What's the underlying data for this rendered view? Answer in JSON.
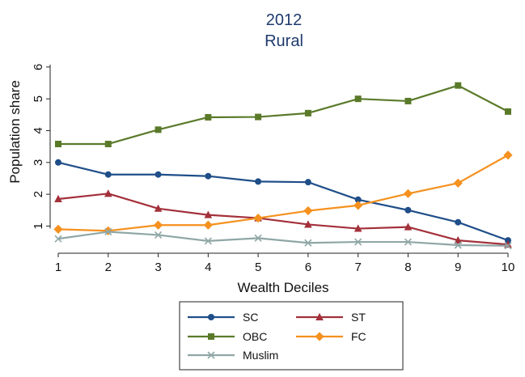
{
  "chart_data": {
    "type": "line",
    "title": "2012",
    "subtitle": "Rural",
    "xlabel": "Wealth Deciles",
    "ylabel": "Population share",
    "x": [
      1,
      2,
      3,
      4,
      5,
      6,
      7,
      8,
      9,
      10
    ],
    "x_ticks": [
      "1",
      "2",
      "3",
      "4",
      "5",
      "6",
      "7",
      "8",
      "9",
      "10"
    ],
    "y_ticks": [
      "1",
      "2",
      "3",
      "4",
      "5",
      "6"
    ],
    "xlim": [
      1,
      10
    ],
    "ylim": [
      0.4,
      6.2
    ],
    "grid": false,
    "legend_position": "bottom",
    "series": [
      {
        "name": "SC",
        "color": "#1f4e89",
        "marker": "circle",
        "values": [
          3.0,
          2.62,
          2.62,
          2.57,
          2.4,
          2.38,
          1.83,
          1.5,
          1.12,
          0.55
        ]
      },
      {
        "name": "ST",
        "color": "#a3303a",
        "marker": "triangle",
        "values": [
          1.85,
          2.02,
          1.55,
          1.35,
          1.25,
          1.05,
          0.92,
          0.97,
          0.55,
          0.42
        ]
      },
      {
        "name": "OBC",
        "color": "#5a7a2a",
        "marker": "square",
        "values": [
          3.58,
          3.58,
          4.03,
          4.42,
          4.43,
          4.55,
          5.0,
          4.93,
          5.42,
          4.6
        ]
      },
      {
        "name": "FC",
        "color": "#f5911e",
        "marker": "diamond",
        "values": [
          0.9,
          0.85,
          1.03,
          1.03,
          1.25,
          1.48,
          1.65,
          2.02,
          2.35,
          3.23
        ]
      },
      {
        "name": "Muslim",
        "color": "#8fa7a6",
        "marker": "x",
        "values": [
          0.6,
          0.82,
          0.72,
          0.53,
          0.62,
          0.47,
          0.5,
          0.5,
          0.4,
          0.38
        ]
      }
    ]
  }
}
